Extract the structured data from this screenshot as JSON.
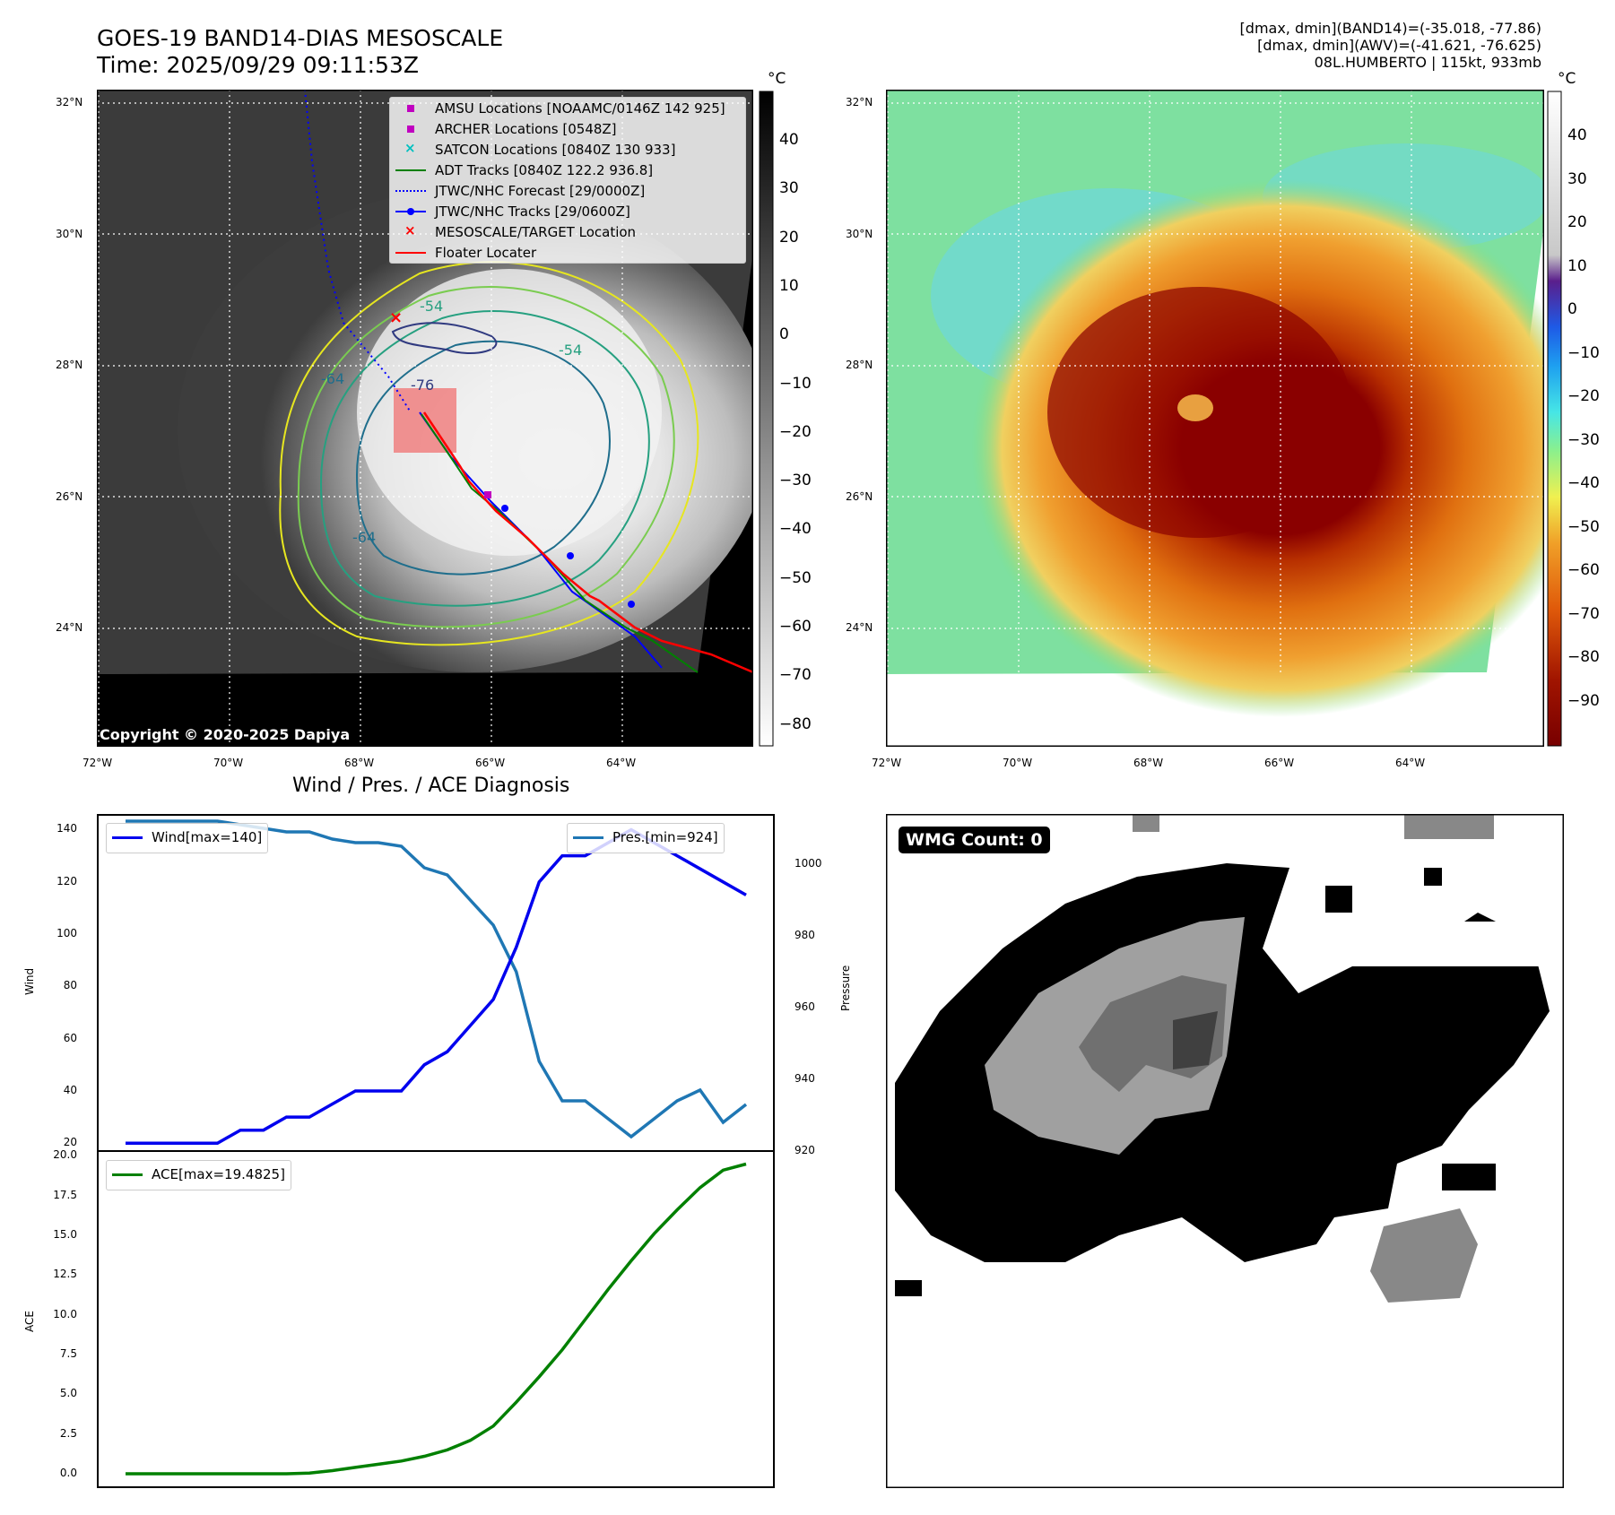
{
  "header": {
    "title_line1": "GOES-19 BAND14-DIAS MESOSCALE",
    "title_line2": "Time: 2025/09/29 09:11:53Z",
    "right_line1": "[dmax, dmin](BAND14)=(-35.018, -77.86)",
    "right_line2": "[dmax, dmin](AWV)=(-41.621, -76.625)",
    "right_line3": "08L.HUMBERTO | 115kt, 933mb"
  },
  "map": {
    "lat_labels": [
      "32°N",
      "30°N",
      "28°N",
      "26°N",
      "24°N"
    ],
    "lon_labels": [
      "72°W",
      "70°W",
      "68°W",
      "66°W",
      "64°W"
    ],
    "copyright": "Copyright © 2020-2025 Dapiya",
    "contour_labels": [
      "-54",
      "-54",
      "-64",
      "-64",
      "-76"
    ]
  },
  "legend": {
    "items": [
      {
        "label": "AMSU Locations [NOAAMC/0146Z 142 925]",
        "color": "#c000c0",
        "kind": "square"
      },
      {
        "label": "ARCHER Locations [0548Z]",
        "color": "#c000c0",
        "kind": "square"
      },
      {
        "label": "SATCON Locations [0840Z 130 933]",
        "color": "#00c0c0",
        "kind": "x"
      },
      {
        "label": "ADT Tracks [0840Z 122.2 936.8]",
        "color": "#008000",
        "kind": "line"
      },
      {
        "label": "JTWC/NHC Forecast [29/0000Z]",
        "color": "#0000ff",
        "kind": "dotted"
      },
      {
        "label": "JTWC/NHC Tracks [29/0600Z]",
        "color": "#0000ff",
        "kind": "line-dot"
      },
      {
        "label": "MESOSCALE/TARGET Location",
        "color": "#ff0000",
        "kind": "x"
      },
      {
        "label": "Floater Locater",
        "color": "#ff0000",
        "kind": "line"
      }
    ]
  },
  "colorbar_gray": {
    "unit": "°C",
    "ticks": [
      "40",
      "30",
      "20",
      "10",
      "0",
      "−10",
      "−20",
      "−30",
      "−40",
      "−50",
      "−60",
      "−70",
      "−80"
    ]
  },
  "colorbar_color": {
    "unit": "°C",
    "ticks": [
      "40",
      "30",
      "20",
      "10",
      "0",
      "−10",
      "−20",
      "−30",
      "−40",
      "−50",
      "−60",
      "−70",
      "−80",
      "−90"
    ]
  },
  "wmg": {
    "label": "WMG Count: 0"
  },
  "colors": {
    "wind": "#0000ee",
    "pressure": "#1f77b4",
    "ace": "#008000"
  },
  "chart_data": [
    {
      "type": "line",
      "title": "Wind / Pres. / ACE Diagnosis",
      "ylabel": "Wind",
      "y2label": "Pressure",
      "ylim": [
        17,
        146
      ],
      "y2lim": [
        920,
        1014
      ],
      "yticks": [
        "140",
        "120",
        "100",
        "80",
        "60",
        "40",
        "20"
      ],
      "y2ticks": [
        "1000",
        "980",
        "960",
        "940",
        "920"
      ],
      "series": [
        {
          "name": "Wind[max=140]",
          "axis": "left",
          "values": [
            20,
            20,
            20,
            20,
            20,
            25,
            25,
            30,
            30,
            35,
            40,
            40,
            40,
            50,
            55,
            65,
            75,
            95,
            120,
            130,
            130,
            135,
            140,
            135,
            130,
            125,
            120,
            115
          ]
        },
        {
          "name": "Pres.[min=924]",
          "axis": "right",
          "values": [
            1012,
            1012,
            1012,
            1012,
            1012,
            1011,
            1010,
            1009,
            1009,
            1007,
            1006,
            1006,
            1005,
            999,
            997,
            990,
            983,
            970,
            945,
            934,
            934,
            929,
            924,
            929,
            934,
            937,
            928,
            933
          ]
        }
      ]
    },
    {
      "type": "line",
      "title": "",
      "ylabel": "ACE",
      "ylim": [
        -0.9,
        20.3
      ],
      "yticks": [
        "20.0",
        "17.5",
        "15.0",
        "12.5",
        "10.0",
        "7.5",
        "5.0",
        "2.5",
        "0.0"
      ],
      "series": [
        {
          "name": "ACE[max=19.4825]",
          "values": [
            0,
            0,
            0,
            0,
            0,
            0,
            0,
            0,
            0.05,
            0.2,
            0.4,
            0.6,
            0.8,
            1.1,
            1.5,
            2.1,
            3.0,
            4.5,
            6.1,
            7.8,
            9.7,
            11.6,
            13.4,
            15.1,
            16.6,
            18.0,
            19.1,
            19.4825
          ]
        }
      ]
    }
  ]
}
